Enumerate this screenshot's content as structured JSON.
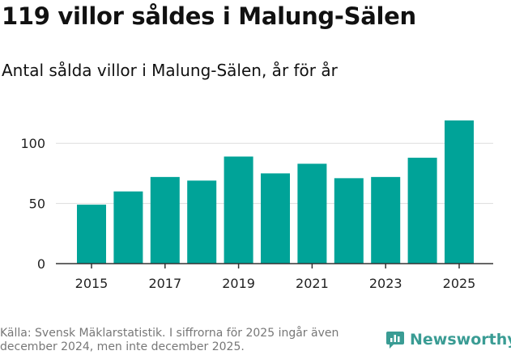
{
  "title": "119 villor såldes i Malung-Sälen",
  "subtitle": "Antal sålda villor i Malung-Sälen, år för år",
  "source": "Källa: Svensk Mäklarstatistik. I siffrorna för 2025 ingår även december 2024, men inte december 2025.",
  "brand": {
    "name": "Newsworthy",
    "icon": "newsworthy-logo-icon",
    "color": "#3a9c94"
  },
  "colors": {
    "bar": "#00a398",
    "grid": "#dddddd",
    "axis": "#333333"
  },
  "chart_data": {
    "type": "bar",
    "categories": [
      "2015",
      "2016",
      "2017",
      "2018",
      "2019",
      "2020",
      "2021",
      "2022",
      "2023",
      "2024",
      "2025"
    ],
    "values": [
      49,
      60,
      72,
      69,
      89,
      75,
      83,
      71,
      72,
      88,
      119
    ],
    "xtick_labels": [
      "2015",
      "2017",
      "2019",
      "2021",
      "2023",
      "2025"
    ],
    "yticks": [
      0,
      50,
      100
    ],
    "ylim": [
      0,
      125
    ],
    "grid": true,
    "xlabel": "",
    "ylabel": ""
  }
}
